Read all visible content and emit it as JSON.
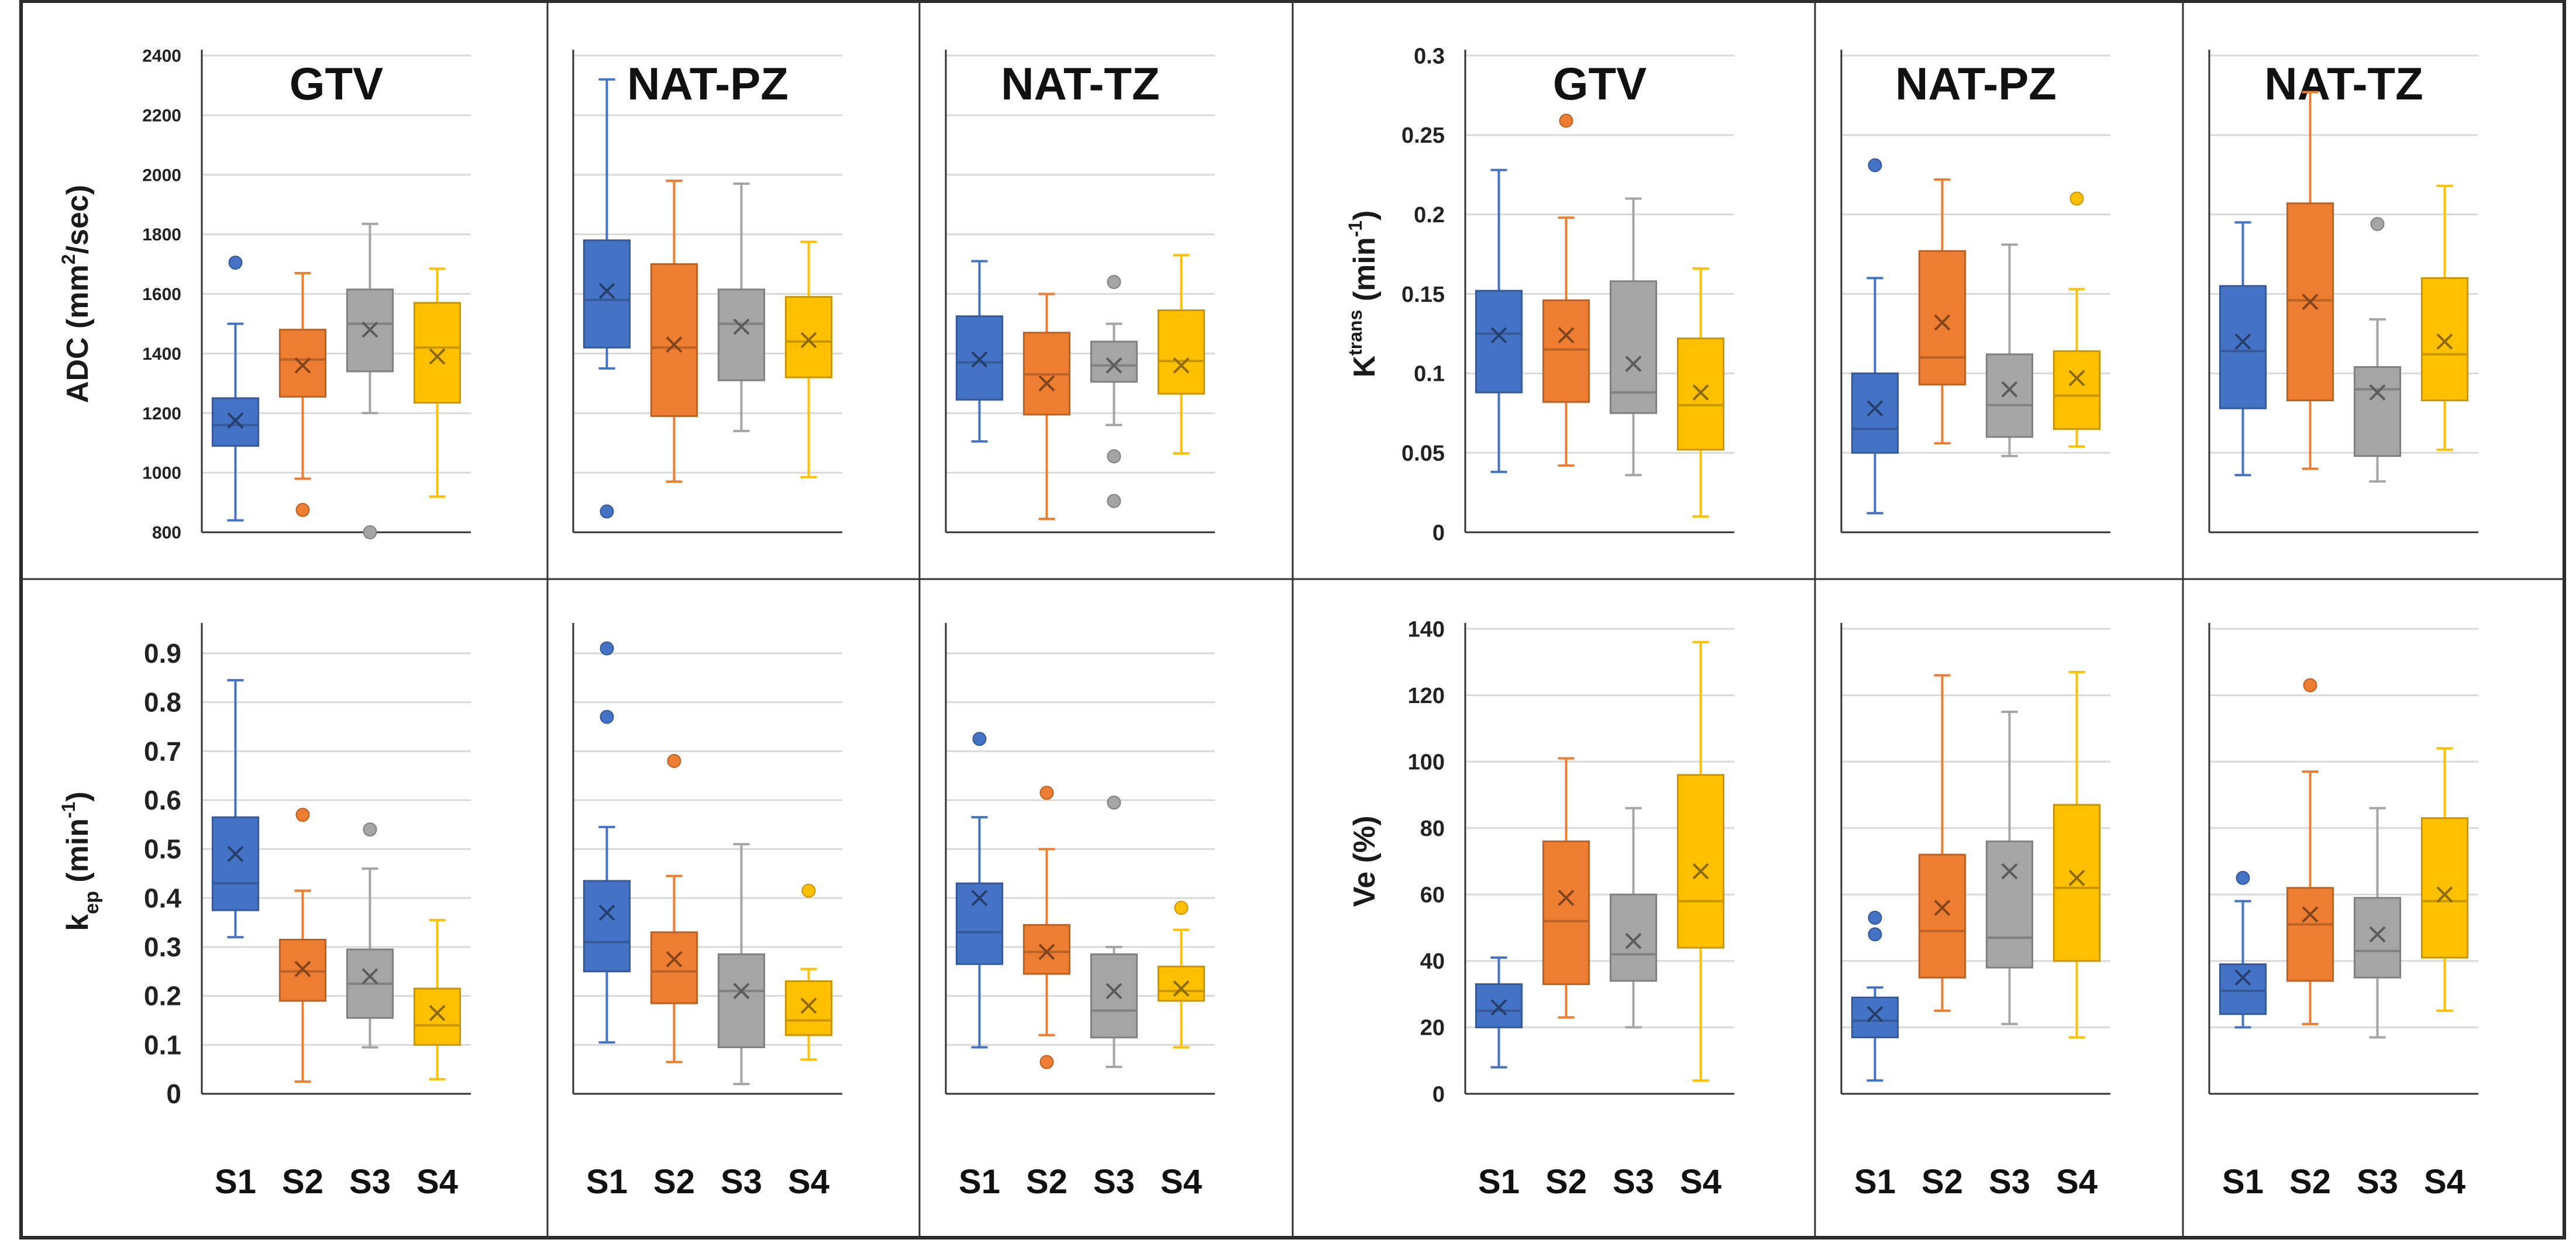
{
  "chart_data": {
    "type": "box",
    "series_names": [
      "S1",
      "S2",
      "S3",
      "S4"
    ],
    "colors": [
      "#4472C4",
      "#ED7D31",
      "#A5A5A5",
      "#FFC000"
    ],
    "metrics": [
      {
        "ylabel_main": "ADC (mm",
        "ylabel_sup": "2",
        "ylabel_tail": "/sec)",
        "ylim": [
          800,
          2400
        ],
        "ticks": [
          "800",
          "1000",
          "1200",
          "1400",
          "1600",
          "1800",
          "2000",
          "2200",
          "2400"
        ],
        "panels": [
          {
            "title": "GTV",
            "boxes": [
              {
                "min": 840,
                "q1": 1090,
                "median": 1160,
                "q3": 1250,
                "max": 1500,
                "mean": 1175,
                "outliers": [
                  1705
                ]
              },
              {
                "min": 980,
                "q1": 1255,
                "median": 1380,
                "q3": 1480,
                "max": 1670,
                "mean": 1360,
                "outliers": [
                  875
                ]
              },
              {
                "min": 1200,
                "q1": 1340,
                "median": 1500,
                "q3": 1615,
                "max": 1835,
                "mean": 1480,
                "outliers": [
                  800
                ]
              },
              {
                "min": 920,
                "q1": 1235,
                "median": 1420,
                "q3": 1570,
                "max": 1685,
                "mean": 1390,
                "outliers": []
              }
            ]
          },
          {
            "title": "NAT-PZ",
            "boxes": [
              {
                "min": 1350,
                "q1": 1420,
                "median": 1580,
                "q3": 1780,
                "max": 2320,
                "mean": 1610,
                "outliers": [
                  870
                ]
              },
              {
                "min": 970,
                "q1": 1190,
                "median": 1420,
                "q3": 1700,
                "max": 1980,
                "mean": 1430,
                "outliers": []
              },
              {
                "min": 1140,
                "q1": 1310,
                "median": 1500,
                "q3": 1615,
                "max": 1970,
                "mean": 1490,
                "outliers": []
              },
              {
                "min": 985,
                "q1": 1320,
                "median": 1440,
                "q3": 1590,
                "max": 1775,
                "mean": 1445,
                "outliers": []
              }
            ]
          },
          {
            "title": "NAT-TZ",
            "boxes": [
              {
                "min": 1105,
                "q1": 1245,
                "median": 1370,
                "q3": 1525,
                "max": 1710,
                "mean": 1380,
                "outliers": []
              },
              {
                "min": 845,
                "q1": 1195,
                "median": 1330,
                "q3": 1470,
                "max": 1600,
                "mean": 1300,
                "outliers": []
              },
              {
                "min": 1160,
                "q1": 1305,
                "median": 1360,
                "q3": 1440,
                "max": 1500,
                "mean": 1360,
                "outliers": [
                  1640,
                  1055,
                  905
                ]
              },
              {
                "min": 1065,
                "q1": 1265,
                "median": 1375,
                "q3": 1545,
                "max": 1730,
                "mean": 1360,
                "outliers": []
              }
            ]
          }
        ]
      },
      {
        "ylabel_main": "K",
        "ylabel_sup": "trans",
        "ylabel_tail": " (min",
        "ylabel_sup2": "-1",
        "ylabel_end": ")",
        "ylim": [
          0,
          0.3
        ],
        "ticks": [
          "0",
          "0.05",
          "0.1",
          "0.15",
          "0.2",
          "0.25",
          "0.3"
        ],
        "panels": [
          {
            "title": "GTV",
            "boxes": [
              {
                "min": 0.038,
                "q1": 0.088,
                "median": 0.125,
                "q3": 0.152,
                "max": 0.228,
                "mean": 0.124,
                "outliers": []
              },
              {
                "min": 0.042,
                "q1": 0.082,
                "median": 0.115,
                "q3": 0.146,
                "max": 0.198,
                "mean": 0.124,
                "outliers": [
                  0.259
                ]
              },
              {
                "min": 0.036,
                "q1": 0.075,
                "median": 0.088,
                "q3": 0.158,
                "max": 0.21,
                "mean": 0.106,
                "outliers": []
              },
              {
                "min": 0.01,
                "q1": 0.052,
                "median": 0.08,
                "q3": 0.122,
                "max": 0.166,
                "mean": 0.088,
                "outliers": []
              }
            ]
          },
          {
            "title": "NAT-PZ",
            "boxes": [
              {
                "min": 0.012,
                "q1": 0.05,
                "median": 0.065,
                "q3": 0.1,
                "max": 0.16,
                "mean": 0.078,
                "outliers": [
                  0.231
                ]
              },
              {
                "min": 0.056,
                "q1": 0.093,
                "median": 0.11,
                "q3": 0.177,
                "max": 0.222,
                "mean": 0.132,
                "outliers": []
              },
              {
                "min": 0.048,
                "q1": 0.06,
                "median": 0.08,
                "q3": 0.112,
                "max": 0.181,
                "mean": 0.09,
                "outliers": []
              },
              {
                "min": 0.054,
                "q1": 0.065,
                "median": 0.086,
                "q3": 0.114,
                "max": 0.153,
                "mean": 0.097,
                "outliers": [
                  0.21
                ]
              }
            ]
          },
          {
            "title": "NAT-TZ",
            "boxes": [
              {
                "min": 0.036,
                "q1": 0.078,
                "median": 0.114,
                "q3": 0.155,
                "max": 0.195,
                "mean": 0.12,
                "outliers": []
              },
              {
                "min": 0.04,
                "q1": 0.083,
                "median": 0.146,
                "q3": 0.207,
                "max": 0.277,
                "mean": 0.145,
                "outliers": []
              },
              {
                "min": 0.032,
                "q1": 0.048,
                "median": 0.09,
                "q3": 0.104,
                "max": 0.134,
                "mean": 0.088,
                "outliers": [
                  0.194
                ]
              },
              {
                "min": 0.052,
                "q1": 0.083,
                "median": 0.112,
                "q3": 0.16,
                "max": 0.218,
                "mean": 0.12,
                "outliers": []
              }
            ]
          }
        ]
      },
      {
        "ylabel_main": "k",
        "ylabel_sub": "ep",
        "ylabel_tail": " (min",
        "ylabel_sup2": "-1",
        "ylabel_end": ")",
        "ylim": [
          0,
          0.95
        ],
        "ticks": [
          "0",
          "0.1",
          "0.2",
          "0.3",
          "0.4",
          "0.5",
          "0.6",
          "0.7",
          "0.8",
          "0.9"
        ],
        "panels": [
          {
            "title": "GTV",
            "boxes": [
              {
                "min": 0.32,
                "q1": 0.375,
                "median": 0.43,
                "q3": 0.565,
                "max": 0.845,
                "mean": 0.49,
                "outliers": []
              },
              {
                "min": 0.025,
                "q1": 0.19,
                "median": 0.25,
                "q3": 0.315,
                "max": 0.415,
                "mean": 0.255,
                "outliers": [
                  0.57
                ]
              },
              {
                "min": 0.095,
                "q1": 0.155,
                "median": 0.225,
                "q3": 0.295,
                "max": 0.46,
                "mean": 0.24,
                "outliers": [
                  0.54
                ]
              },
              {
                "min": 0.03,
                "q1": 0.1,
                "median": 0.14,
                "q3": 0.215,
                "max": 0.355,
                "mean": 0.165,
                "outliers": []
              }
            ]
          },
          {
            "title": "NAT-PZ",
            "boxes": [
              {
                "min": 0.105,
                "q1": 0.25,
                "median": 0.31,
                "q3": 0.435,
                "max": 0.545,
                "mean": 0.37,
                "outliers": [
                  0.91,
                  0.77
                ]
              },
              {
                "min": 0.065,
                "q1": 0.185,
                "median": 0.25,
                "q3": 0.33,
                "max": 0.445,
                "mean": 0.275,
                "outliers": [
                  0.68
                ]
              },
              {
                "min": 0.02,
                "q1": 0.095,
                "median": 0.21,
                "q3": 0.285,
                "max": 0.51,
                "mean": 0.21,
                "outliers": []
              },
              {
                "min": 0.07,
                "q1": 0.12,
                "median": 0.15,
                "q3": 0.23,
                "max": 0.255,
                "mean": 0.18,
                "outliers": [
                  0.415
                ]
              }
            ]
          },
          {
            "title": "NAT-TZ",
            "boxes": [
              {
                "min": 0.095,
                "q1": 0.265,
                "median": 0.33,
                "q3": 0.43,
                "max": 0.565,
                "mean": 0.4,
                "outliers": [
                  0.725
                ]
              },
              {
                "min": 0.12,
                "q1": 0.245,
                "median": 0.29,
                "q3": 0.345,
                "max": 0.5,
                "mean": 0.29,
                "outliers": [
                  0.615,
                  0.065
                ]
              },
              {
                "min": 0.055,
                "q1": 0.115,
                "median": 0.17,
                "q3": 0.285,
                "max": 0.3,
                "mean": 0.21,
                "outliers": [
                  0.595
                ]
              },
              {
                "min": 0.095,
                "q1": 0.19,
                "median": 0.21,
                "q3": 0.26,
                "max": 0.335,
                "mean": 0.215,
                "outliers": [
                  0.38
                ]
              }
            ]
          }
        ]
      },
      {
        "ylabel_main": "Ve (%)",
        "ylim": [
          0,
          140
        ],
        "ticks": [
          "0",
          "20",
          "40",
          "60",
          "80",
          "100",
          "120",
          "140"
        ],
        "panels": [
          {
            "title": "GTV",
            "boxes": [
              {
                "min": 8,
                "q1": 20,
                "median": 25,
                "q3": 33,
                "max": 41,
                "mean": 26,
                "outliers": []
              },
              {
                "min": 23,
                "q1": 33,
                "median": 52,
                "q3": 76,
                "max": 101,
                "mean": 59,
                "outliers": []
              },
              {
                "min": 20,
                "q1": 34,
                "median": 42,
                "q3": 60,
                "max": 86,
                "mean": 46,
                "outliers": []
              },
              {
                "min": 4,
                "q1": 44,
                "median": 58,
                "q3": 96,
                "max": 136,
                "mean": 67,
                "outliers": []
              }
            ]
          },
          {
            "title": "NAT-PZ",
            "boxes": [
              {
                "min": 4,
                "q1": 17,
                "median": 22,
                "q3": 29,
                "max": 32,
                "mean": 24,
                "outliers": [
                  53,
                  48
                ]
              },
              {
                "min": 25,
                "q1": 35,
                "median": 49,
                "q3": 72,
                "max": 126,
                "mean": 56,
                "outliers": []
              },
              {
                "min": 21,
                "q1": 38,
                "median": 47,
                "q3": 76,
                "max": 115,
                "mean": 67,
                "outliers": []
              },
              {
                "min": 17,
                "q1": 40,
                "median": 62,
                "q3": 87,
                "max": 127,
                "mean": 65,
                "outliers": []
              }
            ]
          },
          {
            "title": "NAT-TZ",
            "boxes": [
              {
                "min": 20,
                "q1": 24,
                "median": 31,
                "q3": 39,
                "max": 58,
                "mean": 35,
                "outliers": [
                  65
                ]
              },
              {
                "min": 21,
                "q1": 34,
                "median": 51,
                "q3": 62,
                "max": 97,
                "mean": 54,
                "outliers": [
                  123
                ]
              },
              {
                "min": 17,
                "q1": 35,
                "median": 43,
                "q3": 59,
                "max": 86,
                "mean": 48,
                "outliers": []
              },
              {
                "min": 25,
                "q1": 41,
                "median": 58,
                "q3": 83,
                "max": 104,
                "mean": 60,
                "outliers": []
              }
            ]
          }
        ]
      }
    ]
  }
}
